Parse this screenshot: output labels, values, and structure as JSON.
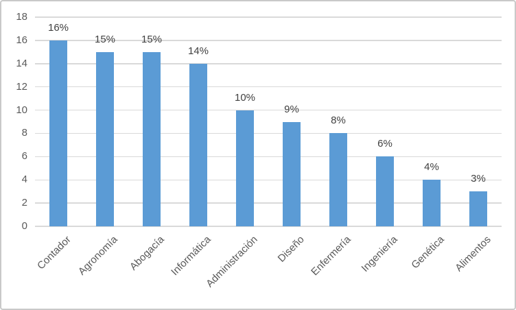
{
  "chart_data": {
    "type": "bar",
    "title": "",
    "xlabel": "",
    "ylabel": "",
    "categories": [
      "Contador",
      "Agronomía",
      "Abogacía",
      "Informática",
      "Administración",
      "Diseño",
      "Enfermería",
      "Ingeniería",
      "Genética",
      "Alimentos"
    ],
    "values": [
      16,
      15,
      15,
      14,
      10,
      9,
      8,
      6,
      4,
      3
    ],
    "data_labels": [
      "16%",
      "15%",
      "15%",
      "14%",
      "10%",
      "9%",
      "8%",
      "6%",
      "4%",
      "3%"
    ],
    "ylim": [
      0,
      18
    ],
    "yticks": [
      "0",
      "2",
      "4",
      "6",
      "8",
      "10",
      "12",
      "14",
      "16",
      "18"
    ],
    "grid": true,
    "legend": false,
    "colors": {
      "bar": "#5b9bd5",
      "gridline": "#d9d9d9",
      "axis_text": "#595959",
      "data_label_text": "#404040",
      "frame_border": "#c9c9c9",
      "background": "#ffffff"
    }
  }
}
